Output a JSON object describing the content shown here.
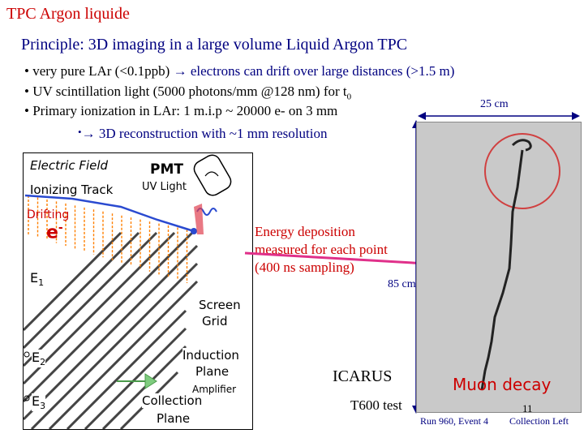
{
  "title": "TPC Argon liquide",
  "subtitle": "Principle: 3D imaging in a large volume Liquid Argon TPC",
  "bullets": {
    "b1_a": "• very pure LAr (<0.1ppb) ",
    "b1_b": "→ electrons can drift over large distances (>1.5 m)",
    "b2_a": "• UV scintillation light (5000 photons/mm @128 nm) for t",
    "b2_sub": "0",
    "b3": "• Primary ionization in LAr: 1 m.i.p ~ 20000 e- on 3 mm",
    "b4_dot": "•",
    "b4": "→ 3D reconstruction with ~1 mm resolution"
  },
  "diagram": {
    "electric_field": "Electric Field",
    "pmt": "PMT",
    "ionizing_track": "Ionizing Track",
    "uv_light": "UV Light",
    "drifting": "Drifting",
    "electron": "e",
    "electron_sup": "-",
    "e1": "E",
    "e1_sub": "1",
    "screen_grid_1": "Screen",
    "screen_grid_2": "Grid",
    "e2": "E",
    "e2_sub": "2",
    "e3": "E",
    "e3_sub": "3",
    "induction_1": "Induction",
    "induction_2": "Plane",
    "amplifier": "Amplifier",
    "collection_1": "Collection",
    "collection_2": "Plane"
  },
  "energy_deposition": [
    "Energy deposition",
    "measured for each point",
    "(400 ns sampling)"
  ],
  "scale_25": "25 cm",
  "scale_85": "85 cm",
  "icarus": "ICARUS",
  "t600": "T600 test",
  "muon_decay": "Muon decay",
  "page_number": "11",
  "run_info": "Run 960, Event 4",
  "collection_left": "Collection Left",
  "colors": {
    "title": "#cc0000",
    "accent_blue": "#000080",
    "arrow_pink": "#e0308a",
    "drift_orange": "#ff7f00"
  }
}
